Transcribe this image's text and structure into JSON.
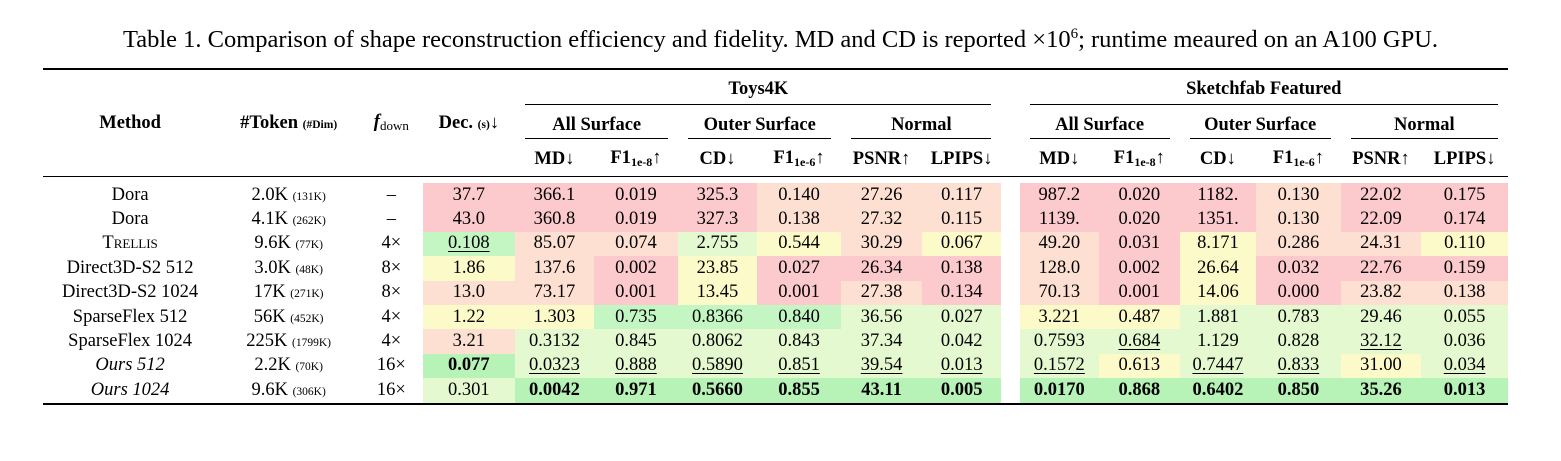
{
  "caption": {
    "prefix": "Table 1. Comparison of shape reconstruction efficiency and fidelity. MD and CD is reported ×10",
    "sup": "6",
    "suffix": "; runtime meaured on an A100 GPU."
  },
  "header": {
    "method": "Method",
    "token": "#Token",
    "token_dim": "(#Dim)",
    "fdown": "f",
    "fdown_sub": "down",
    "dec": "Dec.",
    "dec_unit": "(s)",
    "dec_arrow": "↓",
    "dataset1": "Toys4K",
    "dataset2": "Sketchfab Featured",
    "groups": [
      "All Surface",
      "Outer Surface",
      "Normal"
    ],
    "metrics": {
      "md": "MD↓",
      "f1a": "F1",
      "f1a_sub": "1e-8",
      "cd": "CD↓",
      "f1b": "F1",
      "f1b_sub": "1e-6",
      "psnr": "PSNR↑",
      "lpips": "LPIPS↓",
      "up": "↑"
    }
  },
  "rows": [
    {
      "method": "Dora",
      "tok": "2.0K",
      "dim": "(131K)",
      "fd": "–",
      "dec": "37.7",
      "t": [
        "366.1",
        "0.019",
        "325.3",
        "0.140",
        "27.26",
        "0.117"
      ],
      "s": [
        "987.2",
        "0.020",
        "1182.",
        "0.130",
        "22.02",
        "0.175"
      ]
    },
    {
      "method": "Dora",
      "tok": "4.1K",
      "dim": "(262K)",
      "fd": "–",
      "dec": "43.0",
      "t": [
        "360.8",
        "0.019",
        "327.3",
        "0.138",
        "27.32",
        "0.115"
      ],
      "s": [
        "1139.",
        "0.020",
        "1351.",
        "0.130",
        "22.09",
        "0.174"
      ]
    },
    {
      "method": "Trellis",
      "tok": "9.6K",
      "dim": "(77K)",
      "fd": "4×",
      "dec": "0.108",
      "t": [
        "85.07",
        "0.074",
        "2.755",
        "0.544",
        "30.29",
        "0.067"
      ],
      "s": [
        "49.20",
        "0.031",
        "8.171",
        "0.286",
        "24.31",
        "0.110"
      ]
    },
    {
      "method": "Direct3D-S2 512",
      "tok": "3.0K",
      "dim": "(48K)",
      "fd": "8×",
      "dec": "1.86",
      "t": [
        "137.6",
        "0.002",
        "23.85",
        "0.027",
        "26.34",
        "0.138"
      ],
      "s": [
        "128.0",
        "0.002",
        "26.64",
        "0.032",
        "22.76",
        "0.159"
      ]
    },
    {
      "method": "Direct3D-S2 1024",
      "tok": "17K",
      "dim": "(271K)",
      "fd": "8×",
      "dec": "13.0",
      "t": [
        "73.17",
        "0.001",
        "13.45",
        "0.001",
        "27.38",
        "0.134"
      ],
      "s": [
        "70.13",
        "0.001",
        "14.06",
        "0.000",
        "23.82",
        "0.138"
      ]
    },
    {
      "method": "SparseFlex 512",
      "tok": "56K",
      "dim": "(452K)",
      "fd": "4×",
      "dec": "1.22",
      "t": [
        "1.303",
        "0.735",
        "0.8366",
        "0.840",
        "36.56",
        "0.027"
      ],
      "s": [
        "3.221",
        "0.487",
        "1.881",
        "0.783",
        "29.46",
        "0.055"
      ]
    },
    {
      "method": "SparseFlex 1024",
      "tok": "225K",
      "dim": "(1799K)",
      "fd": "4×",
      "dec": "3.21",
      "t": [
        "0.3132",
        "0.845",
        "0.8062",
        "0.843",
        "37.34",
        "0.042"
      ],
      "s": [
        "0.7593",
        "0.684",
        "1.129",
        "0.828",
        "32.12",
        "0.036"
      ]
    },
    {
      "method": "Ours 512",
      "tok": "2.2K",
      "dim": "(70K)",
      "fd": "16×",
      "dec": "0.077",
      "t": [
        "0.0323",
        "0.888",
        "0.5890",
        "0.851",
        "39.54",
        "0.013"
      ],
      "s": [
        "0.1572",
        "0.613",
        "0.7447",
        "0.833",
        "31.00",
        "0.034"
      ]
    },
    {
      "method": "Ours 1024",
      "tok": "9.6K",
      "dim": "(306K)",
      "fd": "16×",
      "dec": "0.301",
      "t": [
        "0.0042",
        "0.971",
        "0.5660",
        "0.855",
        "43.11",
        "0.005"
      ],
      "s": [
        "0.0170",
        "0.868",
        "0.6402",
        "0.850",
        "35.26",
        "0.013"
      ]
    }
  ],
  "colors": {
    "red": "#fcc9cc",
    "salmon": "#fde0d2",
    "yellow": "#fdfac9",
    "light_green": "#e4f9cf",
    "green": "#c4f6c4",
    "strong_green": "#b7f2b7"
  }
}
